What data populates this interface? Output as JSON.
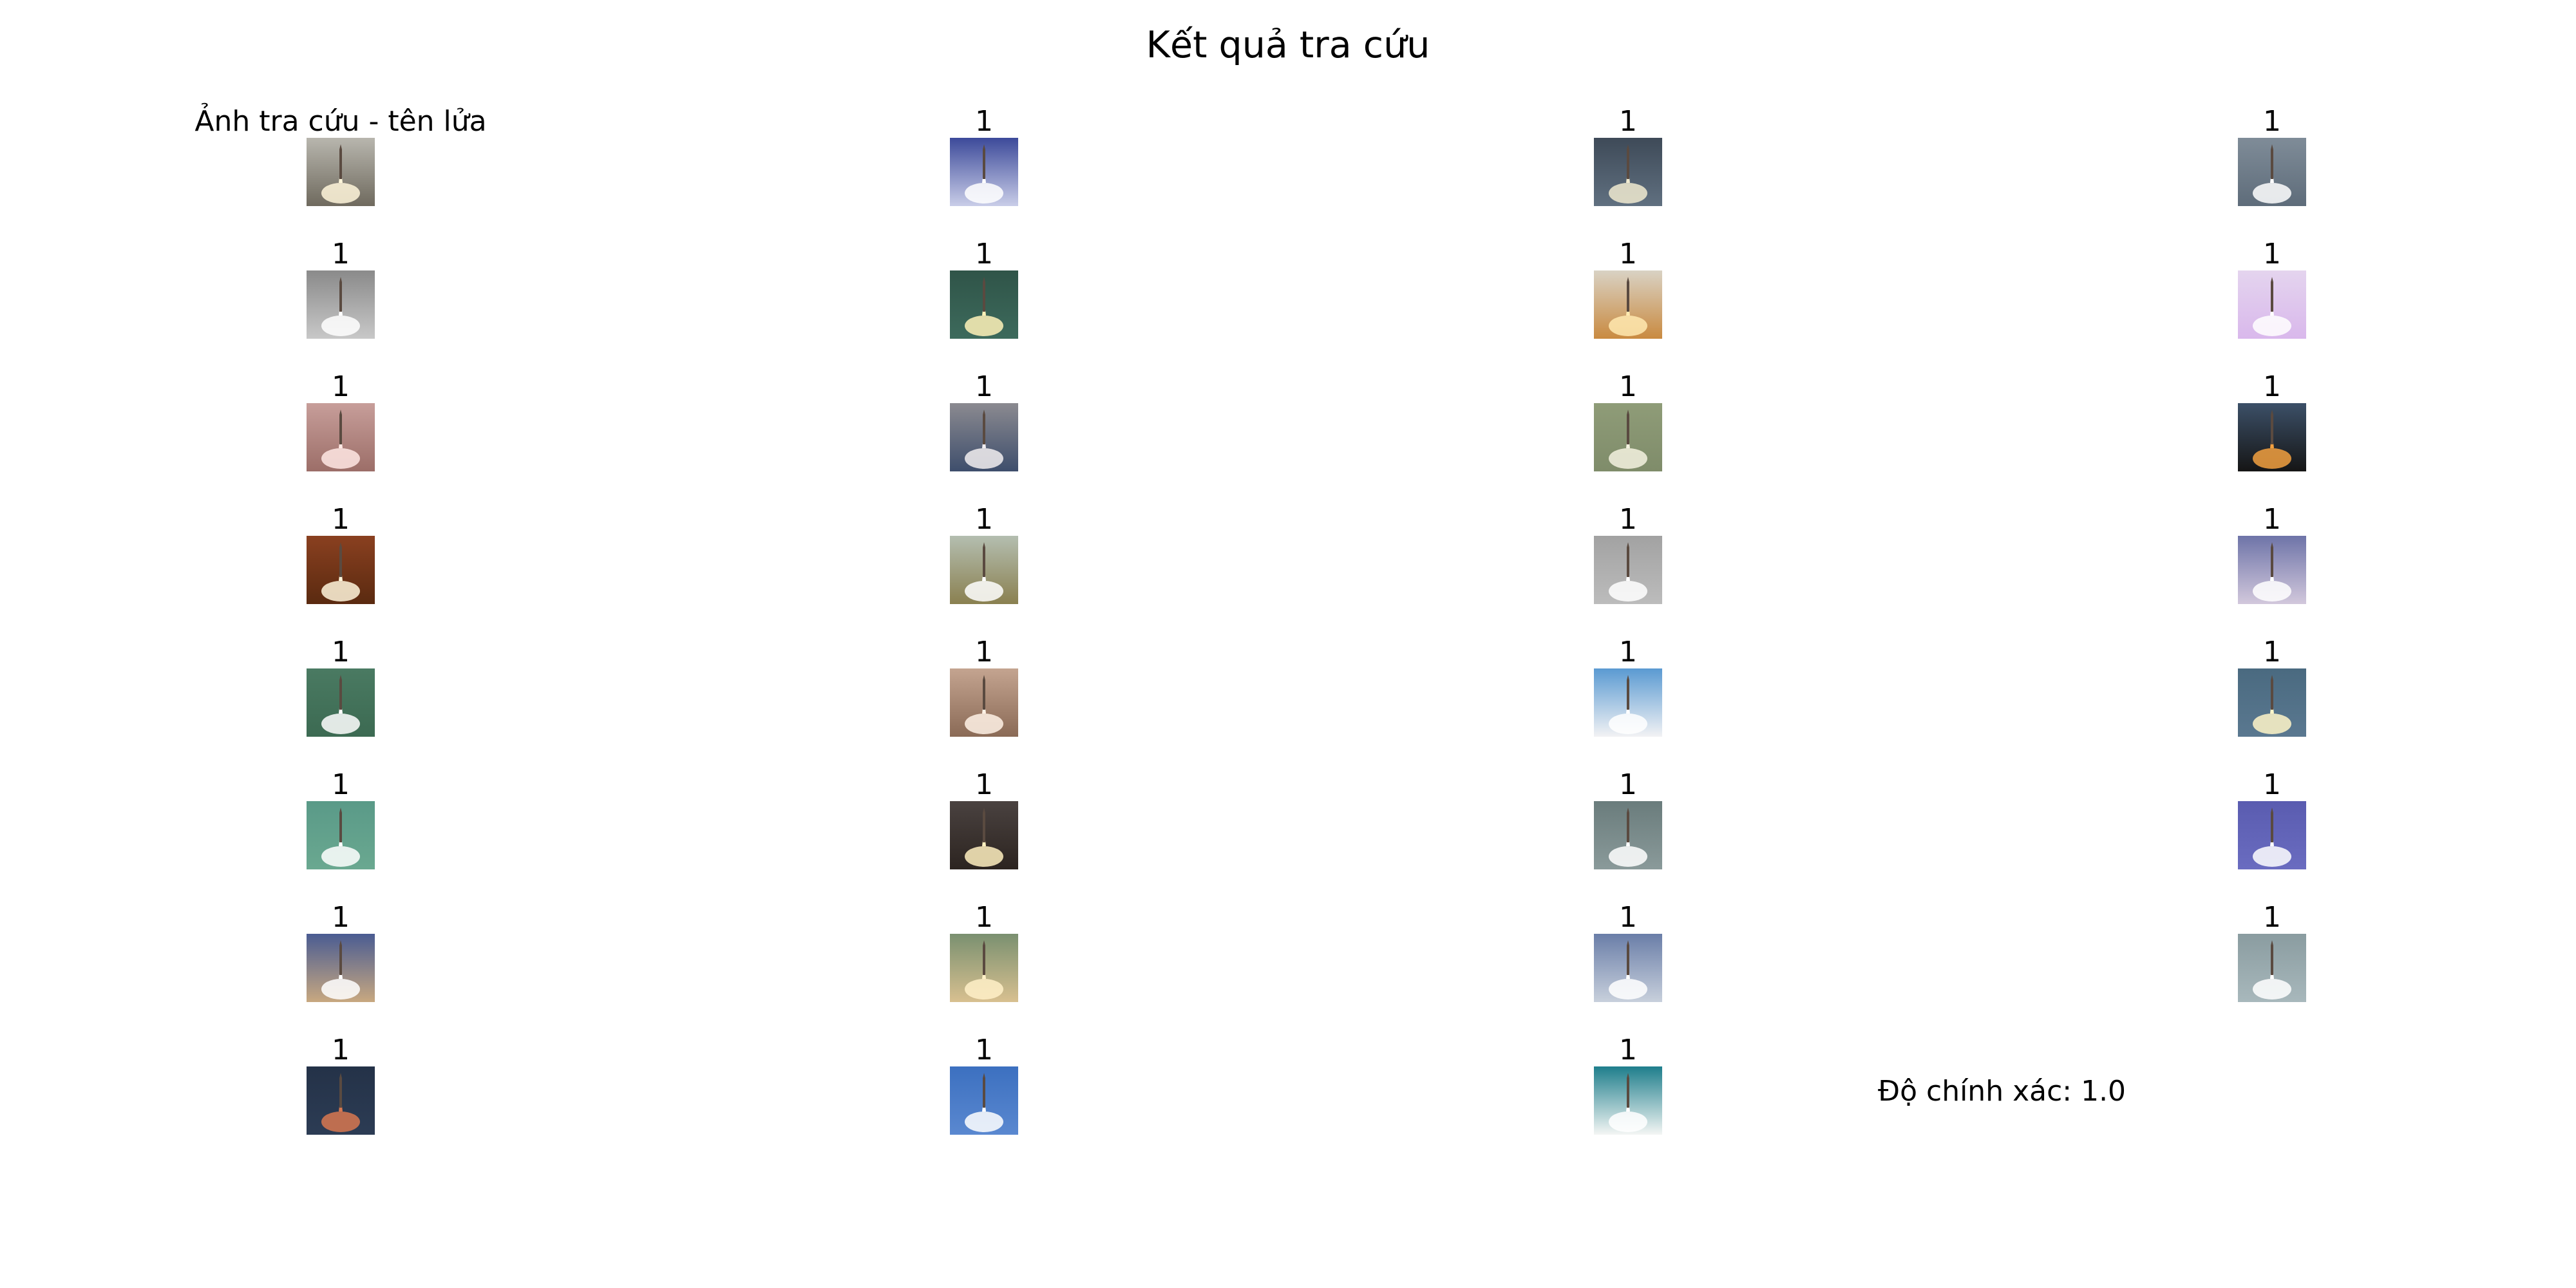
{
  "title": "Kết quả tra cứu",
  "accuracy_text": "Độ chính xác: 1.0",
  "cells": [
    {
      "label": "Ảnh tra cứu - tên lửa",
      "image": "rocket-launch-thumbnail",
      "bg": "#b8b6ae",
      "bottom": "#6f6a5e",
      "flame": "#fff6da"
    },
    {
      "label": "1",
      "image": "rocket-launch-thumbnail",
      "bg": "#3c4a9a",
      "bottom": "#c9cde8",
      "flame": "#ffffff"
    },
    {
      "label": "1",
      "image": "rocket-launch-thumbnail",
      "bg": "#3e4a58",
      "bottom": "#607080",
      "flame": "#f0ead0"
    },
    {
      "label": "1",
      "image": "rocket-launch-thumbnail",
      "bg": "#7f8c98",
      "bottom": "#5e6c7a",
      "flame": "#ffffff"
    },
    {
      "label": "1",
      "image": "rocket-launch-thumbnail",
      "bg": "#8a8a8a",
      "bottom": "#c8c8c8",
      "flame": "#ffffff"
    },
    {
      "label": "1",
      "image": "rocket-launch-thumbnail",
      "bg": "#2f5448",
      "bottom": "#3d6a5c",
      "flame": "#fff2b8"
    },
    {
      "label": "1",
      "image": "rocket-launch-thumbnail",
      "bg": "#d9d2c4",
      "bottom": "#c98a40",
      "flame": "#ffe9b0"
    },
    {
      "label": "1",
      "image": "rocket-launch-thumbnail",
      "bg": "#e4d4ee",
      "bottom": "#d9b8ec",
      "flame": "#ffffff"
    },
    {
      "label": "1",
      "image": "rocket-launch-thumbnail",
      "bg": "#c79e9a",
      "bottom": "#9c6e68",
      "flame": "#ffe8e4"
    },
    {
      "label": "1",
      "image": "rocket-launch-thumbnail",
      "bg": "#8b8a90",
      "bottom": "#3e4e6c",
      "flame": "#f2eef0"
    },
    {
      "label": "1",
      "image": "rocket-launch-thumbnail",
      "bg": "#8f9c78",
      "bottom": "#7f8c6a",
      "flame": "#f4f2e0"
    },
    {
      "label": "1",
      "image": "rocket-launch-thumbnail",
      "bg": "#3c5068",
      "bottom": "#151515",
      "flame": "#f2a040"
    },
    {
      "label": "1",
      "image": "rocket-launch-thumbnail",
      "bg": "#8a4020",
      "bottom": "#5a2a10",
      "flame": "#fff6dc"
    },
    {
      "label": "1",
      "image": "rocket-launch-thumbnail",
      "bg": "#b4beb0",
      "bottom": "#8a8050",
      "flame": "#ffffff"
    },
    {
      "label": "1",
      "image": "rocket-launch-thumbnail",
      "bg": "#a2a2a2",
      "bottom": "#bcbcbc",
      "flame": "#ffffff"
    },
    {
      "label": "1",
      "image": "rocket-launch-thumbnail",
      "bg": "#6e74a8",
      "bottom": "#d2c8dc",
      "flame": "#ffffff"
    },
    {
      "label": "1",
      "image": "rocket-launch-thumbnail",
      "bg": "#4a7a62",
      "bottom": "#3c6a52",
      "flame": "#ffffff"
    },
    {
      "label": "1",
      "image": "rocket-launch-thumbnail",
      "bg": "#c4a490",
      "bottom": "#8a6a56",
      "flame": "#fff2e6"
    },
    {
      "label": "1",
      "image": "rocket-launch-thumbnail",
      "bg": "#5a9ad2",
      "bottom": "#f2f2f4",
      "flame": "#ffffff"
    },
    {
      "label": "1",
      "image": "rocket-launch-thumbnail",
      "bg": "#4a6a80",
      "bottom": "#5a7890",
      "flame": "#fff6c8"
    },
    {
      "label": "1",
      "image": "rocket-launch-thumbnail",
      "bg": "#5a9a88",
      "bottom": "#6aa890",
      "flame": "#ffffff"
    },
    {
      "label": "1",
      "image": "rocket-launch-thumbnail",
      "bg": "#4a4240",
      "bottom": "#2c2420",
      "flame": "#fff0c0"
    },
    {
      "label": "1",
      "image": "rocket-launch-thumbnail",
      "bg": "#6a7c7c",
      "bottom": "#8a9a9a",
      "flame": "#ffffff"
    },
    {
      "label": "1",
      "image": "rocket-launch-thumbnail",
      "bg": "#5a5cb0",
      "bottom": "#6a6cc0",
      "flame": "#ffffff"
    },
    {
      "label": "1",
      "image": "rocket-launch-thumbnail",
      "bg": "#4a5c92",
      "bottom": "#c8a880",
      "flame": "#ffffff"
    },
    {
      "label": "1",
      "image": "rocket-launch-thumbnail",
      "bg": "#7a9070",
      "bottom": "#d8c090",
      "flame": "#fff0c8"
    },
    {
      "label": "1",
      "image": "rocket-launch-thumbnail",
      "bg": "#6a7ea8",
      "bottom": "#c8d0dc",
      "flame": "#ffffff"
    },
    {
      "label": "1",
      "image": "rocket-launch-thumbnail",
      "bg": "#8a9ca0",
      "bottom": "#a8b8bc",
      "flame": "#ffffff"
    },
    {
      "label": "1",
      "image": "rocket-launch-thumbnail",
      "bg": "#243248",
      "bottom": "#2c3c54",
      "flame": "#d87850"
    },
    {
      "label": "1",
      "image": "rocket-launch-thumbnail",
      "bg": "#3c70c0",
      "bottom": "#5a88d0",
      "flame": "#ffffff"
    },
    {
      "label": "1",
      "image": "rocket-launch-thumbnail",
      "bg": "#1e7e8c",
      "bottom": "#f4f6f4",
      "flame": "#ffffff"
    }
  ]
}
